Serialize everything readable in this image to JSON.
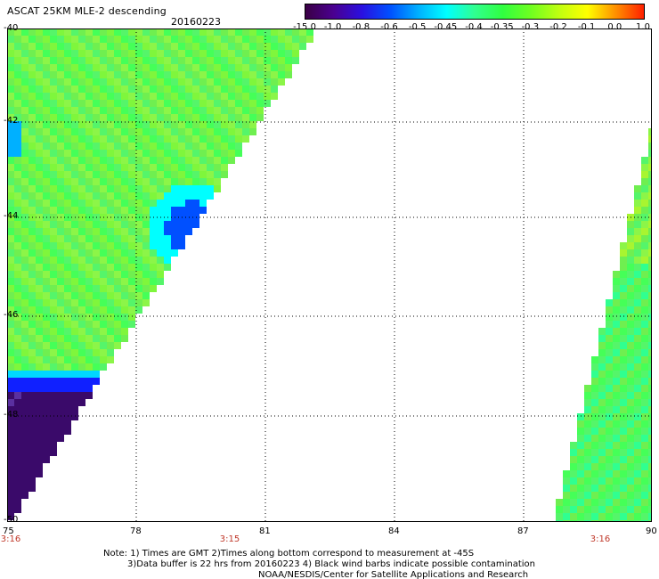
{
  "header": {
    "title": "ASCAT 25KM MLE-2 descending",
    "date": "20160223"
  },
  "colorbar": {
    "labels": [
      "-15.0",
      "-1.0",
      "-0.8",
      "-0.6",
      "-0.5",
      "-0.45",
      "-0.4",
      "-0.35",
      "-0.3",
      "-0.2",
      "-0.1",
      "0.0",
      "1.0"
    ],
    "colors": [
      "#3a0045",
      "#4a0090",
      "#2a10e0",
      "#0050ff",
      "#00b0ff",
      "#00ffff",
      "#30ff90",
      "#30ff40",
      "#70ff20",
      "#c0ff10",
      "#ffff00",
      "#ff9000",
      "#ff2000"
    ]
  },
  "map": {
    "lat_labels": [
      "-40",
      "-42",
      "-44",
      "-46",
      "-48",
      "-50"
    ],
    "lon_labels": [
      "75",
      "78",
      "81",
      "84",
      "87",
      "90"
    ],
    "time_labels": [
      "3:16",
      "3:15",
      "3:16"
    ],
    "lon_range": [
      75,
      90
    ],
    "lat_range": [
      -50,
      -40
    ]
  },
  "notes": {
    "line1": "Note: 1) Times are GMT 2)Times along bottom correspond to measurement at -45S",
    "line2": "3)Data buffer is 22 hrs from 20160223 4) Black wind barbs indicate possible contamination",
    "line3": "NOAA/NESDIS/Center for Satellite Applications and Research"
  }
}
